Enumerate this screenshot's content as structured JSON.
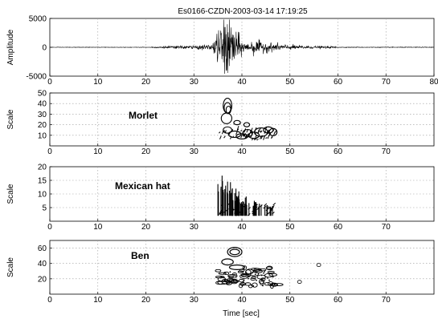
{
  "chart_data": [
    {
      "type": "line",
      "title": "Es0166-CZDN-2003-03-14 17:19:25",
      "xlabel": "",
      "ylabel": "Amplitude",
      "xlim": [
        0,
        80
      ],
      "ylim": [
        -5000,
        5000
      ],
      "xticks": [
        "0",
        "10",
        "20",
        "30",
        "40",
        "50",
        "60",
        "70",
        "80"
      ],
      "yticks": [
        "5000",
        "0",
        "-5000"
      ],
      "grid": true,
      "series": [
        {
          "signal_onset_s": 21,
          "peak_time_s": 37,
          "peak_amplitude": 3500,
          "coda_end_s": 60
        }
      ]
    },
    {
      "type": "heatmap",
      "annotation": "Morlet",
      "xlabel": "",
      "ylabel": "Scale",
      "xlim": [
        0,
        80
      ],
      "ylim": [
        0,
        50
      ],
      "xticks": [
        "0",
        "10",
        "20",
        "30",
        "40",
        "50",
        "60",
        "70"
      ],
      "yticks": [
        "50",
        "40",
        "30",
        "20",
        "10"
      ],
      "grid": true,
      "energy_region": {
        "x_range": [
          35,
          47
        ],
        "scale_range": [
          5,
          45
        ],
        "peak_time_s": 37
      }
    },
    {
      "type": "heatmap",
      "annotation": "Mexican hat",
      "xlabel": "",
      "ylabel": "Scale",
      "xlim": [
        0,
        80
      ],
      "ylim": [
        0,
        20
      ],
      "xticks": [
        "0",
        "10",
        "20",
        "30",
        "40",
        "50",
        "60",
        "70"
      ],
      "yticks": [
        "20",
        "15",
        "10",
        "5"
      ],
      "grid": true,
      "energy_region": {
        "x_range": [
          35,
          47
        ],
        "scale_range": [
          2,
          17
        ],
        "peak_time_s": 36.5
      }
    },
    {
      "type": "heatmap",
      "annotation": "Ben",
      "xlabel": "Time [sec]",
      "ylabel": "Scale",
      "xlim": [
        0,
        80
      ],
      "ylim": [
        0,
        70
      ],
      "xticks": [
        "0",
        "10",
        "20",
        "30",
        "40",
        "50",
        "60",
        "70"
      ],
      "yticks": [
        "60",
        "40",
        "20"
      ],
      "grid": true,
      "energy_region": {
        "x_range": [
          35,
          57
        ],
        "scale_range": [
          8,
          60
        ],
        "peak_time_s": 38
      }
    }
  ]
}
